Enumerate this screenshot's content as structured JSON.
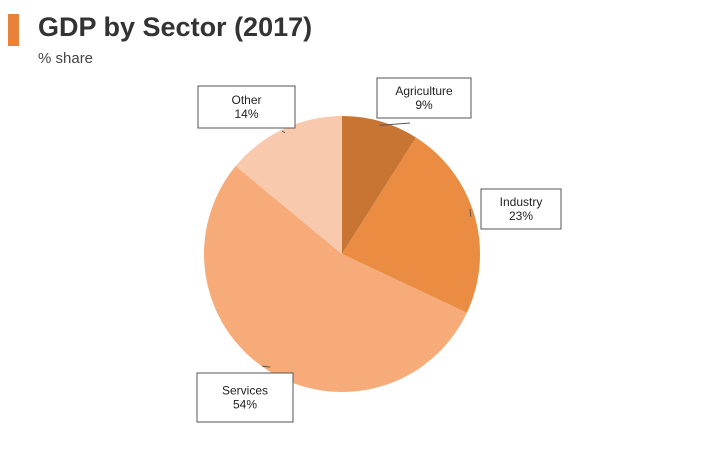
{
  "header": {
    "accent_color": "#e8823a",
    "title": "GDP by Sector (2017)",
    "subtitle": "% share"
  },
  "chart_data": {
    "type": "pie",
    "title": "GDP by Sector (2017)",
    "subtitle": "% share",
    "unit": "%",
    "slices": [
      {
        "label": "Agriculture",
        "value": 9,
        "value_label": "9%",
        "color": "#c87533"
      },
      {
        "label": "Industry",
        "value": 23,
        "value_label": "23%",
        "color": "#ea8c42"
      },
      {
        "label": "Services",
        "value": 54,
        "value_label": "54%",
        "color": "#f7ab78"
      },
      {
        "label": "Other",
        "value": 14,
        "value_label": "14%",
        "color": "#f9c9ae"
      }
    ],
    "start_angle_deg": 0,
    "direction": "clockwise",
    "legend": "none",
    "labels": "callout boxes"
  }
}
